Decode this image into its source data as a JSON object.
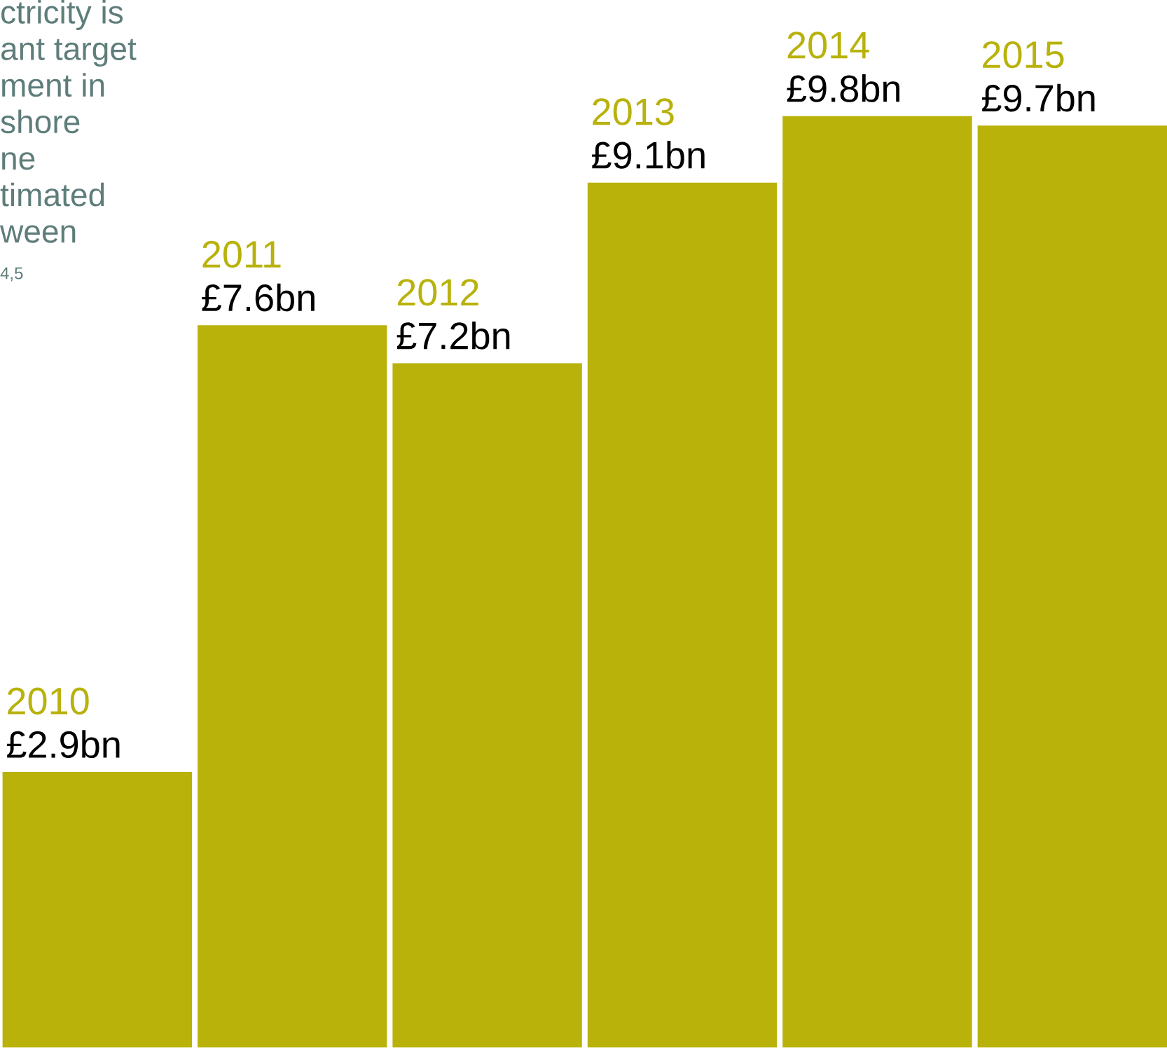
{
  "chart_data": {
    "type": "bar",
    "categories": [
      "2010",
      "2011",
      "2012",
      "2013",
      "2014",
      "2015"
    ],
    "values": [
      2.9,
      7.6,
      7.2,
      9.1,
      9.8,
      9.7
    ],
    "value_labels": [
      "£2.9bn",
      "£7.6bn",
      "£7.2bn",
      "£9.1bn",
      "£9.8bn",
      "£9.7bn"
    ],
    "color": "#b8b20b",
    "annotations": [
      "ctricity is",
      "ant target",
      "ment in",
      "shore",
      "ne",
      "timated",
      "ween",
      "4,5"
    ]
  }
}
